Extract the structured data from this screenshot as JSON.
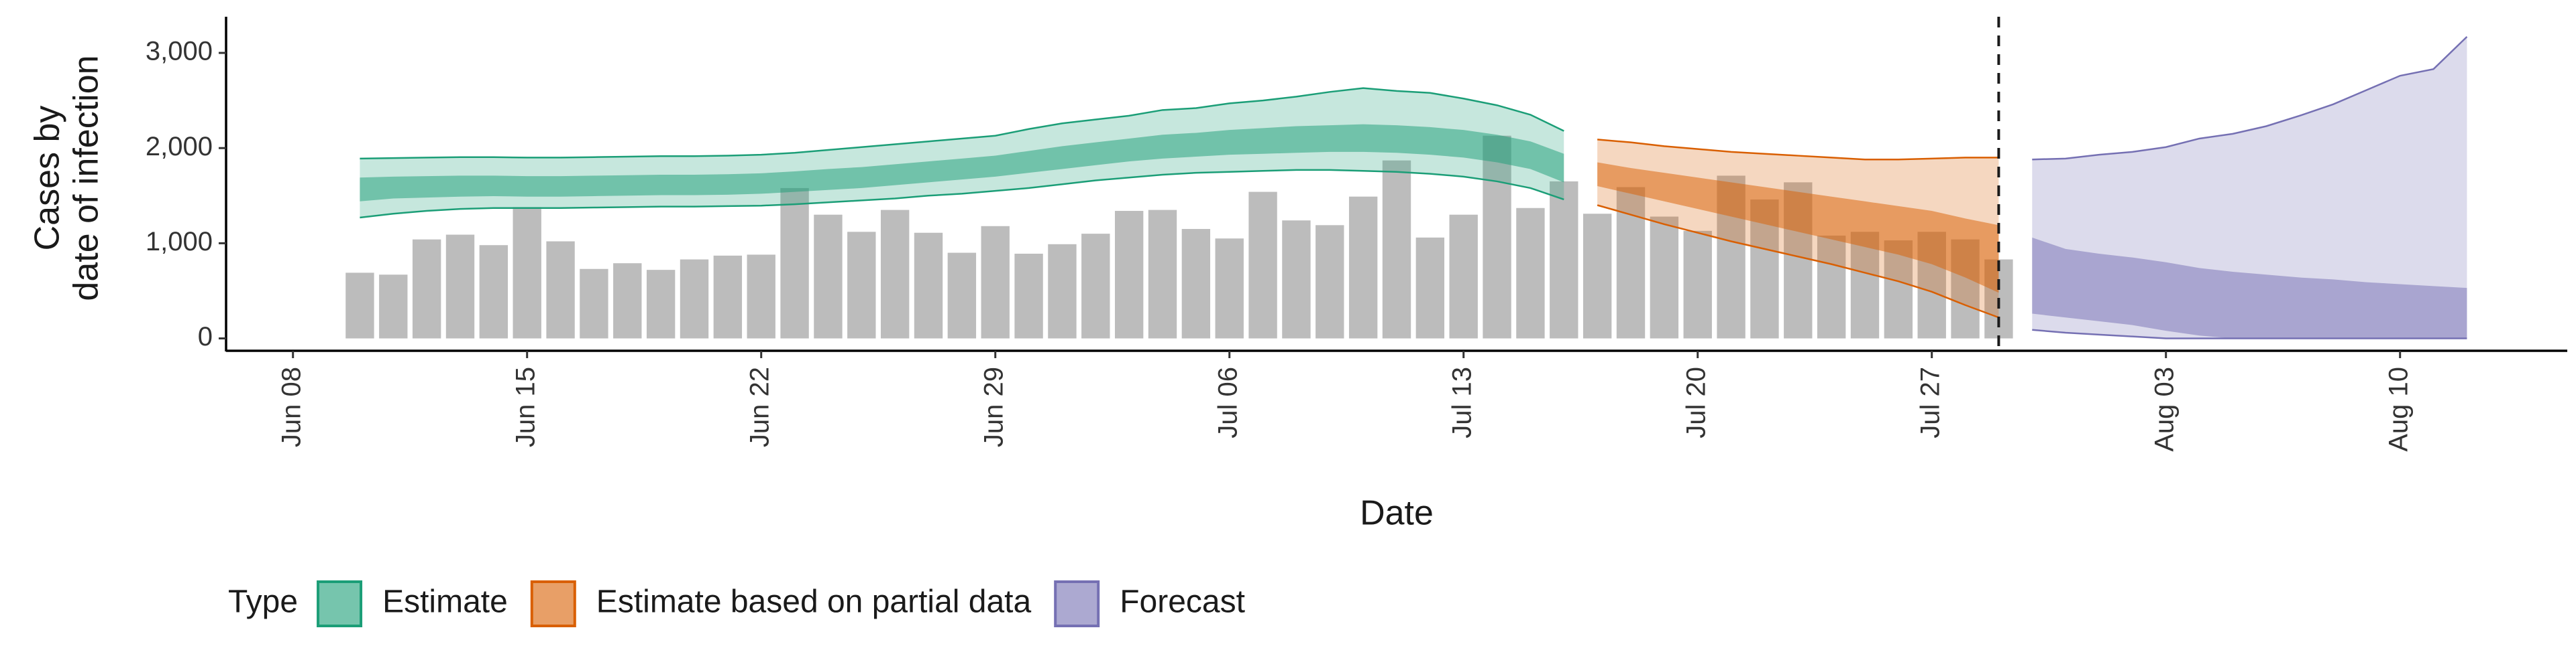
{
  "chart_data": {
    "type": "ribbon",
    "x_label": "Date",
    "y_label": [
      "Cases by",
      "date of infection"
    ],
    "legend_title": "Type",
    "legend_position": "bottom",
    "xlim": [
      "Jun 06",
      "Aug 15"
    ],
    "xticks": [
      "Jun 08",
      "Jun 15",
      "Jun 22",
      "Jun 29",
      "Jul 06",
      "Jul 13",
      "Jul 20",
      "Jul 27",
      "Aug 03",
      "Aug 10"
    ],
    "ylim": [
      -130,
      3380
    ],
    "yticks": [
      0,
      {
        "value": 1000,
        "label": "1,000"
      },
      {
        "value": 2000,
        "label": "2,000"
      },
      {
        "value": 3000,
        "label": "3,000"
      }
    ],
    "vline": "Jul 29",
    "bars": {
      "color": "#a6a6a6",
      "x": [
        "Jun 10",
        "Jun 11",
        "Jun 12",
        "Jun 13",
        "Jun 14",
        "Jun 15",
        "Jun 16",
        "Jun 17",
        "Jun 18",
        "Jun 19",
        "Jun 20",
        "Jun 21",
        "Jun 22",
        "Jun 23",
        "Jun 24",
        "Jun 25",
        "Jun 26",
        "Jun 27",
        "Jun 28",
        "Jun 29",
        "Jun 30",
        "Jul 01",
        "Jul 02",
        "Jul 03",
        "Jul 04",
        "Jul 05",
        "Jul 06",
        "Jul 07",
        "Jul 08",
        "Jul 09",
        "Jul 10",
        "Jul 11",
        "Jul 12",
        "Jul 13",
        "Jul 14",
        "Jul 15",
        "Jul 16",
        "Jul 17",
        "Jul 18",
        "Jul 19",
        "Jul 20",
        "Jul 21",
        "Jul 22",
        "Jul 23",
        "Jul 24",
        "Jul 25",
        "Jul 26",
        "Jul 27",
        "Jul 28",
        "Jul 29"
      ],
      "values": [
        690,
        670,
        1040,
        1090,
        980,
        1380,
        1020,
        730,
        790,
        720,
        830,
        870,
        880,
        1580,
        1300,
        1120,
        1350,
        1110,
        900,
        1180,
        890,
        990,
        1100,
        1340,
        1350,
        1150,
        1050,
        1540,
        1240,
        1190,
        1490,
        1870,
        1060,
        1300,
        2130,
        1370,
        1650,
        1310,
        1590,
        1280,
        1130,
        1710,
        1460,
        1640,
        1080,
        1120,
        1030,
        1120,
        1040,
        830
      ]
    },
    "series": [
      {
        "name": "Estimate",
        "color": "#1b9e77",
        "x": [
          "Jun 10",
          "Jun 11",
          "Jun 12",
          "Jun 13",
          "Jun 14",
          "Jun 15",
          "Jun 16",
          "Jun 17",
          "Jun 18",
          "Jun 19",
          "Jun 20",
          "Jun 21",
          "Jun 22",
          "Jun 23",
          "Jun 24",
          "Jun 25",
          "Jun 26",
          "Jun 27",
          "Jun 28",
          "Jun 29",
          "Jun 30",
          "Jul 01",
          "Jul 02",
          "Jul 03",
          "Jul 04",
          "Jul 05",
          "Jul 06",
          "Jul 07",
          "Jul 08",
          "Jul 09",
          "Jul 10",
          "Jul 11",
          "Jul 12",
          "Jul 13",
          "Jul 14",
          "Jul 15",
          "Jul 16"
        ],
        "upper_90": [
          1890,
          1895,
          1900,
          1905,
          1905,
          1900,
          1900,
          1905,
          1910,
          1915,
          1915,
          1920,
          1930,
          1950,
          1980,
          2010,
          2040,
          2070,
          2100,
          2130,
          2200,
          2260,
          2300,
          2340,
          2400,
          2420,
          2470,
          2500,
          2540,
          2590,
          2630,
          2600,
          2580,
          2520,
          2450,
          2350,
          2180
        ],
        "upper_50": [
          1690,
          1700,
          1705,
          1710,
          1710,
          1705,
          1705,
          1710,
          1715,
          1720,
          1720,
          1725,
          1735,
          1755,
          1780,
          1800,
          1830,
          1860,
          1890,
          1920,
          1970,
          2020,
          2060,
          2100,
          2140,
          2160,
          2190,
          2210,
          2230,
          2240,
          2250,
          2240,
          2220,
          2190,
          2140,
          2070,
          1940
        ],
        "lower_50": [
          1440,
          1470,
          1480,
          1490,
          1495,
          1490,
          1490,
          1495,
          1500,
          1505,
          1505,
          1510,
          1520,
          1540,
          1560,
          1580,
          1610,
          1640,
          1670,
          1700,
          1740,
          1780,
          1820,
          1860,
          1890,
          1910,
          1930,
          1940,
          1950,
          1960,
          1960,
          1950,
          1930,
          1900,
          1850,
          1780,
          1640
        ],
        "lower_90": [
          1270,
          1310,
          1340,
          1360,
          1370,
          1370,
          1370,
          1375,
          1380,
          1385,
          1385,
          1390,
          1395,
          1410,
          1430,
          1450,
          1470,
          1500,
          1520,
          1550,
          1580,
          1620,
          1660,
          1690,
          1720,
          1740,
          1750,
          1760,
          1770,
          1770,
          1760,
          1750,
          1730,
          1700,
          1650,
          1580,
          1460
        ]
      },
      {
        "name": "Estimate based on partial data",
        "color": "#d95f02",
        "x": [
          "Jul 17",
          "Jul 18",
          "Jul 19",
          "Jul 20",
          "Jul 21",
          "Jul 22",
          "Jul 23",
          "Jul 24",
          "Jul 25",
          "Jul 26",
          "Jul 27",
          "Jul 28",
          "Jul 29"
        ],
        "upper_90": [
          2090,
          2060,
          2020,
          1990,
          1960,
          1940,
          1920,
          1900,
          1880,
          1880,
          1890,
          1900,
          1900
        ],
        "upper_50": [
          1850,
          1790,
          1740,
          1690,
          1640,
          1590,
          1540,
          1490,
          1440,
          1390,
          1340,
          1260,
          1190
        ],
        "lower_50": [
          1600,
          1520,
          1440,
          1360,
          1280,
          1200,
          1120,
          1040,
          960,
          880,
          780,
          640,
          480
        ],
        "lower_90": [
          1400,
          1300,
          1200,
          1110,
          1020,
          940,
          860,
          780,
          690,
          600,
          490,
          350,
          220
        ]
      },
      {
        "name": "Forecast",
        "color": "#7570b3",
        "x": [
          "Jul 30",
          "Jul 31",
          "Aug 01",
          "Aug 02",
          "Aug 03",
          "Aug 04",
          "Aug 05",
          "Aug 06",
          "Aug 07",
          "Aug 08",
          "Aug 09",
          "Aug 10",
          "Aug 11",
          "Aug 12"
        ],
        "upper_90": [
          1880,
          1890,
          1930,
          1960,
          2010,
          2100,
          2150,
          2230,
          2340,
          2460,
          2610,
          2760,
          2830,
          3170
        ],
        "upper_50": [
          1060,
          940,
          890,
          850,
          800,
          740,
          700,
          670,
          640,
          620,
          590,
          570,
          550,
          530
        ],
        "lower_50": [
          260,
          220,
          180,
          140,
          80,
          30,
          0,
          0,
          0,
          0,
          0,
          0,
          0,
          0
        ],
        "lower_90": [
          90,
          60,
          40,
          20,
          0,
          0,
          0,
          0,
          0,
          0,
          0,
          0,
          0,
          0
        ]
      }
    ]
  }
}
